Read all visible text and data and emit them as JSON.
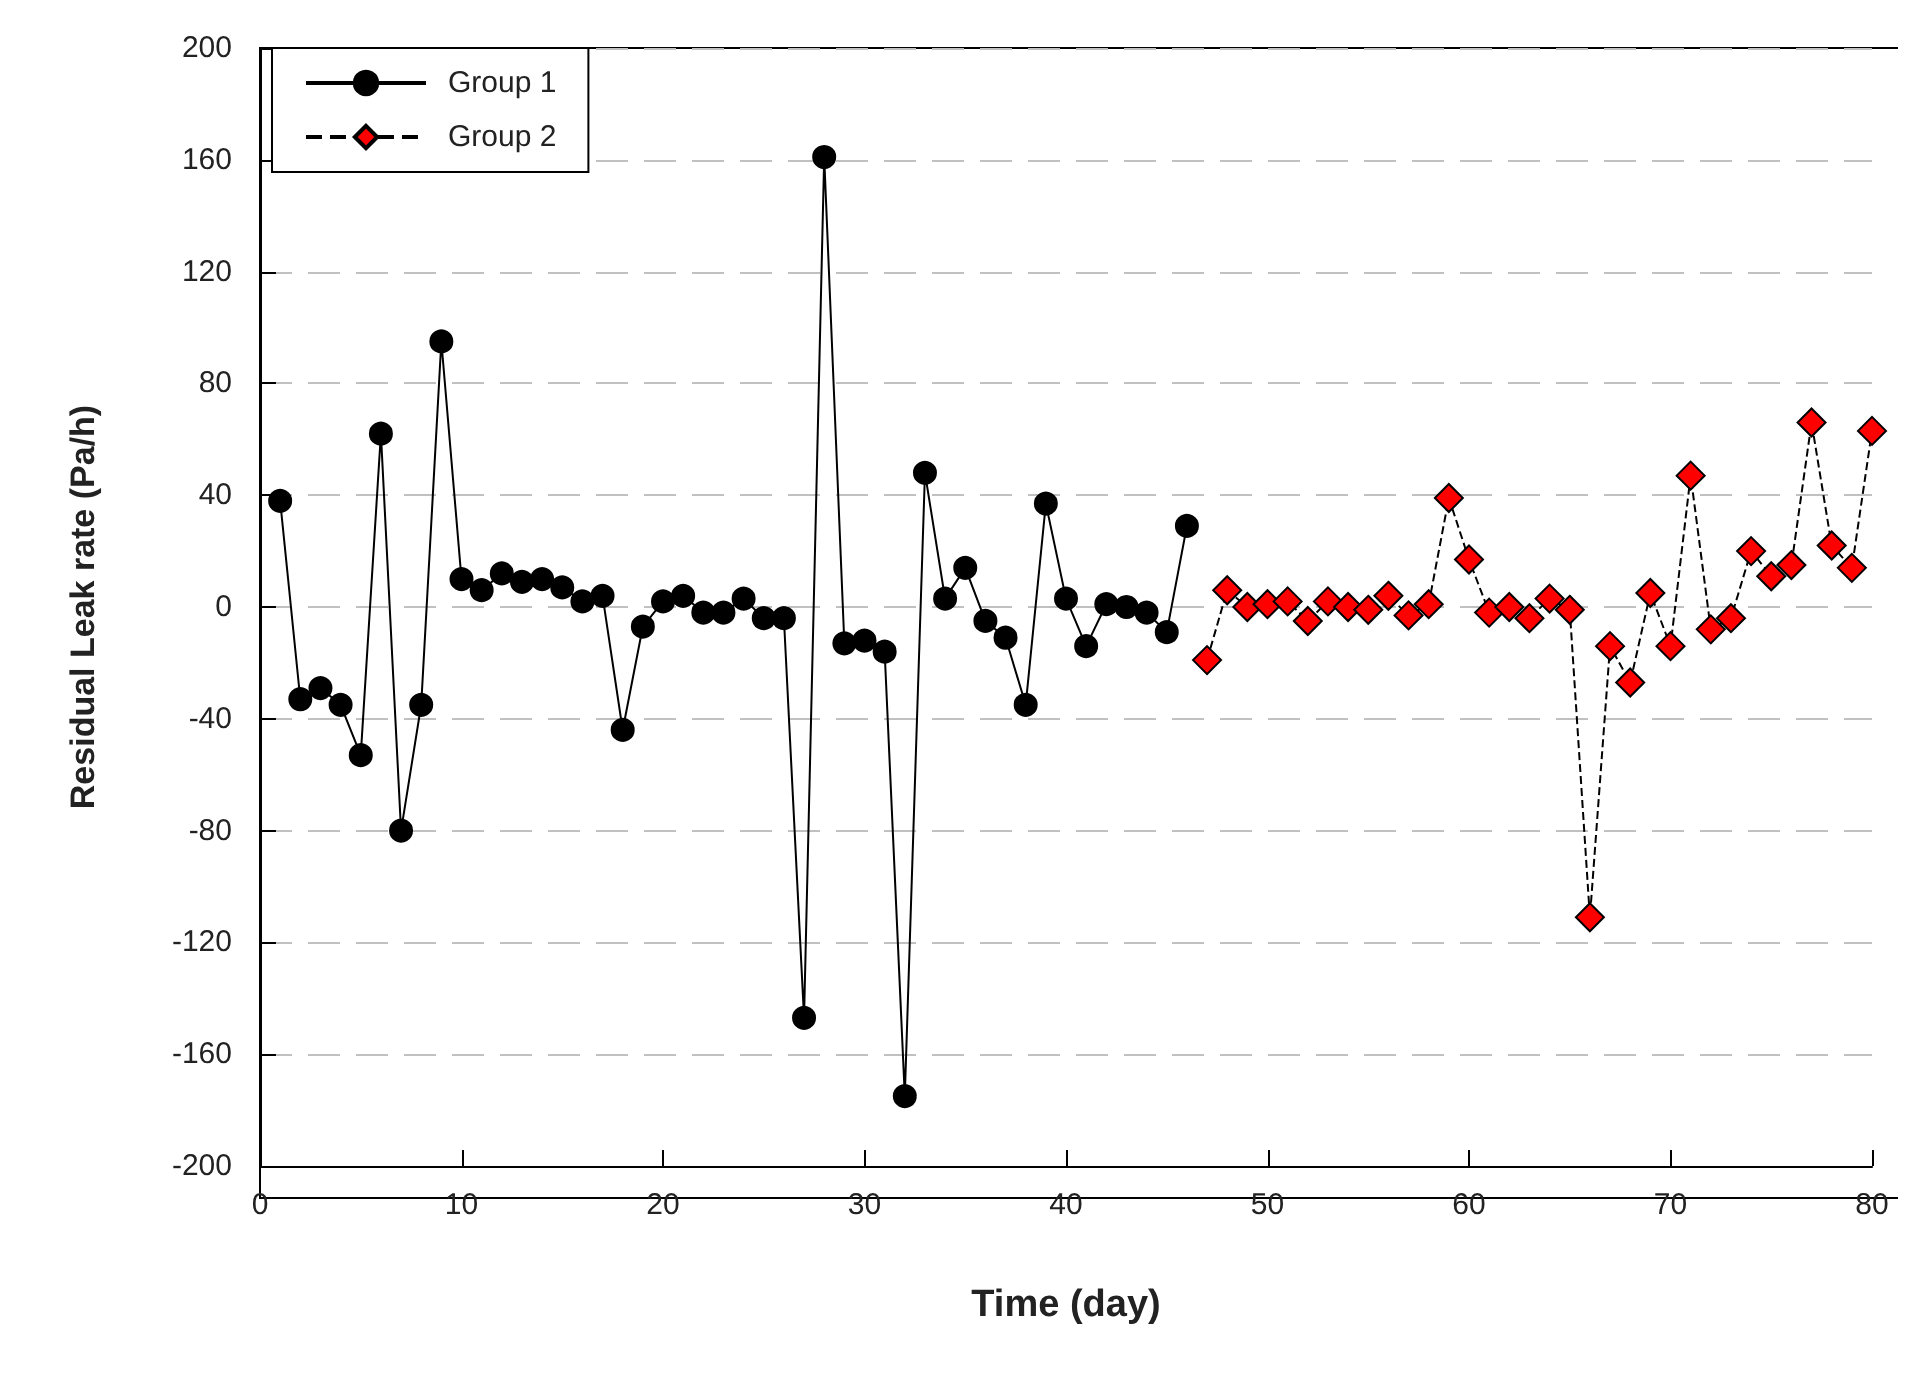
{
  "chart_data": {
    "type": "line",
    "xlabel": "Time (day)",
    "ylabel": "Residual Leak rate (Pa/h)",
    "xlim": [
      0,
      80
    ],
    "xticks": [
      0,
      10,
      20,
      30,
      40,
      50,
      60,
      70,
      80
    ],
    "ylim": [
      -200,
      200
    ],
    "yticks": [
      -200,
      -160,
      -120,
      -80,
      -40,
      0,
      40,
      80,
      120,
      160,
      200
    ],
    "grid": "y",
    "legend": "top left",
    "series": [
      {
        "name": "Group 1",
        "color": "#000000",
        "marker": "circle",
        "line_style": "solid",
        "x": [
          1,
          2,
          3,
          4,
          5,
          6,
          7,
          8,
          9,
          10,
          11,
          12,
          13,
          14,
          15,
          16,
          17,
          18,
          19,
          20,
          21,
          22,
          23,
          24,
          25,
          26,
          27,
          28,
          29,
          30,
          31,
          32,
          33,
          34,
          35,
          36,
          37,
          38,
          39,
          40,
          41,
          42,
          43,
          44,
          45,
          46
        ],
        "values": [
          38,
          -33,
          -29,
          -35,
          -53,
          62,
          -80,
          -35,
          95,
          10,
          6,
          12,
          9,
          10,
          7,
          2,
          4,
          -44,
          -7,
          2,
          4,
          -2,
          -2,
          3,
          -4,
          -4,
          -147,
          161,
          -13,
          -12,
          -16,
          -175,
          48,
          3,
          14,
          -5,
          -11,
          -35,
          37,
          3,
          -14,
          1,
          0,
          -2,
          -9,
          29
        ]
      },
      {
        "name": "Group 2",
        "color": "#ff0000",
        "marker": "diamond",
        "line_style": "dashed",
        "x": [
          47,
          48,
          49,
          50,
          51,
          52,
          53,
          54,
          55,
          56,
          57,
          58,
          59,
          60,
          61,
          62,
          63,
          64,
          65,
          66,
          67,
          68,
          69,
          70,
          71,
          72,
          73,
          74,
          75,
          76,
          77,
          78,
          79,
          80
        ],
        "values": [
          -19,
          6,
          0,
          1,
          2,
          -5,
          2,
          0,
          -1,
          4,
          -3,
          1,
          39,
          17,
          -2,
          0,
          -4,
          3,
          -1,
          -111,
          -14,
          -27,
          5,
          -14,
          47,
          -8,
          -4,
          20,
          11,
          15,
          66,
          22,
          14,
          63
        ]
      }
    ]
  }
}
